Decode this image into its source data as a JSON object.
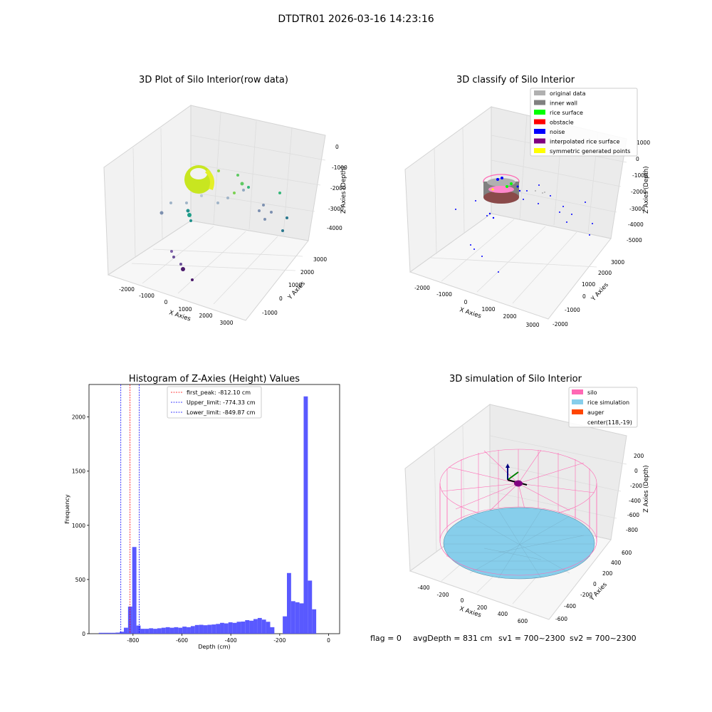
{
  "figure": {
    "suptitle": "DTDTR01 2026-03-16 14:23:16",
    "footer": {
      "flag": "flag = 0",
      "avg_depth": "avgDepth = 831 cm",
      "sv1": "sv1 = 700~2300",
      "sv2": "sv2 = 700~2300"
    }
  },
  "colors": {
    "original_data": "#b0b0b0",
    "inner_wall": "#808080",
    "rice_surface": "#00ff00",
    "obstacle": "#ff0000",
    "noise": "#0000ff",
    "interpolated_rice_surface": "#800080",
    "symmetric_generated_points": "#ffff00",
    "silo": "#ff69b4",
    "rice_simulation": "#87ceeb",
    "auger": "#ff4500",
    "hist_bar": "#5050ff",
    "first_peak_line": "#ff0000",
    "limit_line": "#0000ff"
  },
  "chart_data": [
    {
      "id": "raw",
      "type": "scatter",
      "title": "3D Plot of Silo Interior(row data)",
      "xlabel": "X Axies",
      "ylabel": "Y Axies",
      "zlabel": "Z Axies (Depth)",
      "x_ticks": [
        "-2000",
        "-1000",
        "0",
        "1000",
        "2000",
        "3000"
      ],
      "y_ticks": [
        "-1000",
        "0",
        "1000",
        "2000",
        "3000"
      ],
      "z_ticks": [
        "-4000",
        "-3000",
        "-2000",
        "-1000",
        "0"
      ]
    },
    {
      "id": "classify",
      "type": "scatter",
      "title": "3D classify of Silo Interior",
      "xlabel": "X Axies",
      "ylabel": "Y Axies",
      "zlabel": "Z Axies (Depth)",
      "x_ticks": [
        "-2000",
        "-1000",
        "0",
        "1000",
        "2000",
        "3000"
      ],
      "y_ticks": [
        "-2000",
        "-1000",
        "0",
        "1000",
        "2000",
        "3000"
      ],
      "z_ticks": [
        "-5000",
        "-4000",
        "-3000",
        "-2000",
        "-1000",
        "0",
        "1000"
      ],
      "legend": [
        "original data",
        "inner wall",
        "rice surface",
        "obstacle",
        "noise",
        "interpolated rice surface",
        "symmetric generated points"
      ]
    },
    {
      "id": "histogram",
      "type": "bar",
      "title": "Histogram of Z-Axies (Height) Values",
      "xlabel": "Depth (cm)",
      "ylabel": "Frequency",
      "xlim": [
        -980,
        45
      ],
      "ylim": [
        0,
        2300
      ],
      "x_ticks": [
        "-800",
        "-600",
        "-400",
        "-200",
        "0"
      ],
      "x_tick_values": [
        -800,
        -600,
        -400,
        -200,
        0
      ],
      "y_ticks": [
        "0",
        "500",
        "1000",
        "1500",
        "2000"
      ],
      "y_tick_values": [
        0,
        500,
        1000,
        1500,
        2000
      ],
      "bin_start": -940,
      "bin_width": 17.1,
      "values": [
        8,
        8,
        8,
        8,
        10,
        18,
        55,
        250,
        800,
        75,
        45,
        45,
        50,
        45,
        50,
        55,
        60,
        55,
        60,
        55,
        65,
        60,
        70,
        80,
        82,
        78,
        82,
        85,
        90,
        100,
        95,
        105,
        100,
        110,
        112,
        125,
        120,
        135,
        145,
        130,
        110,
        60,
        0,
        0,
        160,
        560,
        300,
        290,
        280,
        2190,
        490,
        225
      ],
      "lines": [
        {
          "label": "first_peak: -812.10 cm",
          "value": -812.1,
          "style": "first_peak"
        },
        {
          "label": "Upper_limit: -774.33 cm",
          "value": -774.33,
          "style": "limit"
        },
        {
          "label": "Lower_limit: -849.87 cm",
          "value": -849.87,
          "style": "limit"
        }
      ]
    },
    {
      "id": "simulation",
      "type": "scatter",
      "title": "3D simulation of Silo Interior",
      "xlabel": "X Axies",
      "ylabel": "Y Axies",
      "zlabel": "Z Axies (Depth)",
      "x_ticks": [
        "-400",
        "-200",
        "0",
        "200",
        "400",
        "600"
      ],
      "y_ticks": [
        "-600",
        "-400",
        "-200",
        "0",
        "200",
        "400",
        "600"
      ],
      "z_ticks": [
        "-800",
        "-600",
        "-400",
        "-200",
        "0",
        "200"
      ],
      "legend": [
        "silo",
        "rice simulation",
        "auger",
        "center(118,-19)"
      ]
    }
  ]
}
